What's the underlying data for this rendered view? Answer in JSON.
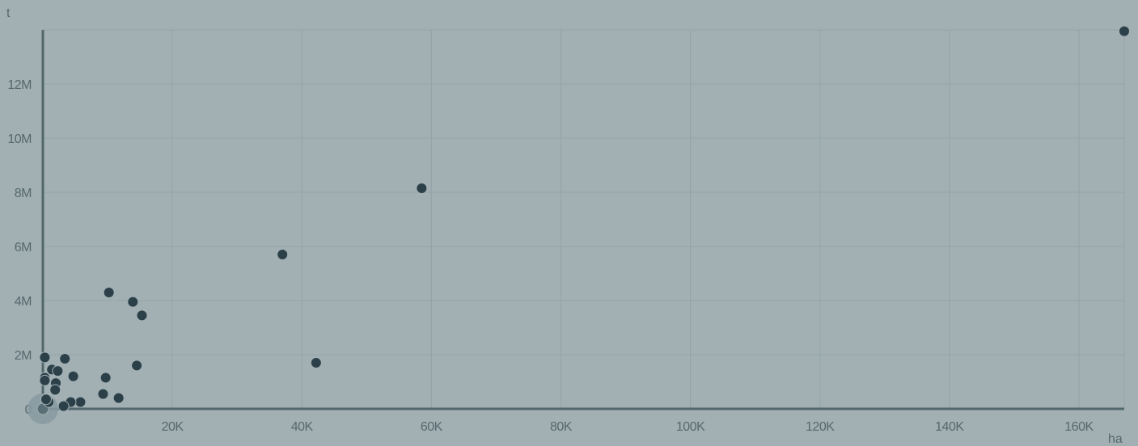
{
  "chart_data": {
    "type": "scatter",
    "xlabel": "ha",
    "ylabel": "t",
    "xlim": [
      0,
      167000
    ],
    "ylim": [
      0,
      14000000
    ],
    "grid": true,
    "x_ticks": [
      {
        "value": 20000,
        "label": "20K"
      },
      {
        "value": 40000,
        "label": "40K"
      },
      {
        "value": 60000,
        "label": "60K"
      },
      {
        "value": 80000,
        "label": "80K"
      },
      {
        "value": 100000,
        "label": "100K"
      },
      {
        "value": 120000,
        "label": "120K"
      },
      {
        "value": 140000,
        "label": "140K"
      },
      {
        "value": 160000,
        "label": "160K"
      }
    ],
    "y_ticks": [
      {
        "value": 0,
        "label": "0"
      },
      {
        "value": 2000000,
        "label": "2M"
      },
      {
        "value": 4000000,
        "label": "4M"
      },
      {
        "value": 6000000,
        "label": "6M"
      },
      {
        "value": 8000000,
        "label": "8M"
      },
      {
        "value": 10000000,
        "label": "10M"
      },
      {
        "value": 12000000,
        "label": "12M"
      }
    ],
    "highlighted_point": {
      "x": 0,
      "y": 0
    },
    "points": [
      {
        "x": 167000,
        "y": 13950000
      },
      {
        "x": 58500,
        "y": 8150000
      },
      {
        "x": 37000,
        "y": 5700000
      },
      {
        "x": 42200,
        "y": 1700000
      },
      {
        "x": 10200,
        "y": 4300000
      },
      {
        "x": 13900,
        "y": 3950000
      },
      {
        "x": 15300,
        "y": 3450000
      },
      {
        "x": 14500,
        "y": 1600000
      },
      {
        "x": 9700,
        "y": 1150000
      },
      {
        "x": 9300,
        "y": 550000
      },
      {
        "x": 11700,
        "y": 400000
      },
      {
        "x": 5800,
        "y": 250000
      },
      {
        "x": 4700,
        "y": 1200000
      },
      {
        "x": 3400,
        "y": 1850000
      },
      {
        "x": 300,
        "y": 1900000
      },
      {
        "x": 1400,
        "y": 1450000
      },
      {
        "x": 2300,
        "y": 1400000
      },
      {
        "x": 300,
        "y": 1150000
      },
      {
        "x": 300,
        "y": 1050000
      },
      {
        "x": 2000,
        "y": 950000
      },
      {
        "x": 1900,
        "y": 700000
      },
      {
        "x": 4300,
        "y": 250000
      },
      {
        "x": 3200,
        "y": 100000
      },
      {
        "x": 900,
        "y": 250000
      },
      {
        "x": 500,
        "y": 350000
      }
    ]
  }
}
